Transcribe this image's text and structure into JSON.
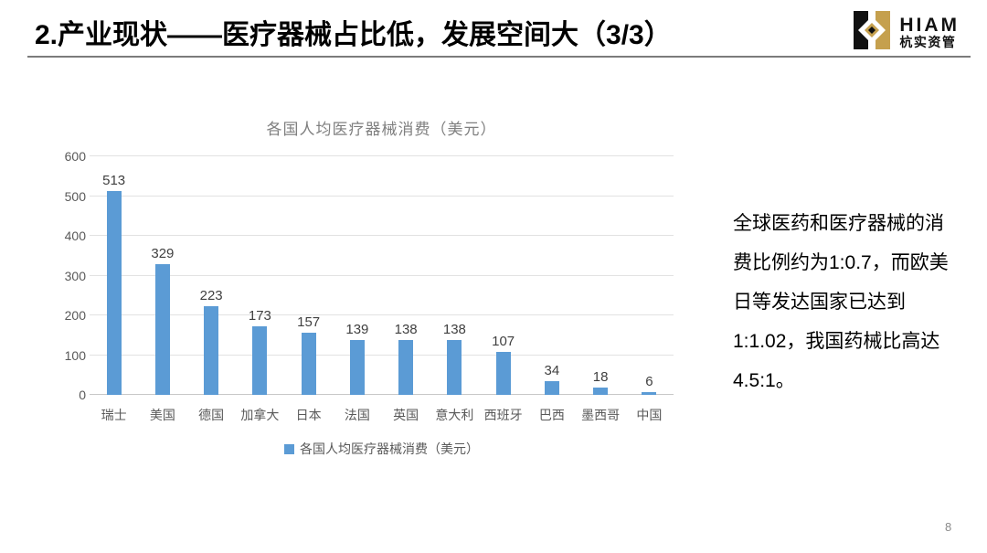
{
  "slide": {
    "title": "2.产业现状——医疗器械占比低，发展空间大（3/3）",
    "page_number": "8"
  },
  "logo": {
    "name": "HIAM",
    "subtitle": "杭实资管",
    "colors": {
      "black": "#111111",
      "gold": "#c5a04e"
    }
  },
  "chart_data": {
    "type": "bar",
    "title": "各国人均医疗器械消费（美元）",
    "categories": [
      "瑞士",
      "美国",
      "德国",
      "加拿大",
      "日本",
      "法国",
      "英国",
      "意大利",
      "西班牙",
      "巴西",
      "墨西哥",
      "中国"
    ],
    "values": [
      513,
      329,
      223,
      173,
      157,
      139,
      138,
      138,
      107,
      34,
      18,
      6
    ],
    "xlabel": "",
    "ylabel": "",
    "ylim": [
      0,
      600
    ],
    "yticks": [
      0,
      100,
      200,
      300,
      400,
      500,
      600
    ],
    "grid": true,
    "legend": [
      "各国人均医疗器械消费（美元）"
    ],
    "legend_position": "bottom",
    "bar_color": "#5b9bd5"
  },
  "annotation": {
    "text": "全球医药和医疗器械的消费比例约为1:0.7，而欧美日等发达国家已达到1:1.02，我国药械比高达4.5:1。"
  }
}
